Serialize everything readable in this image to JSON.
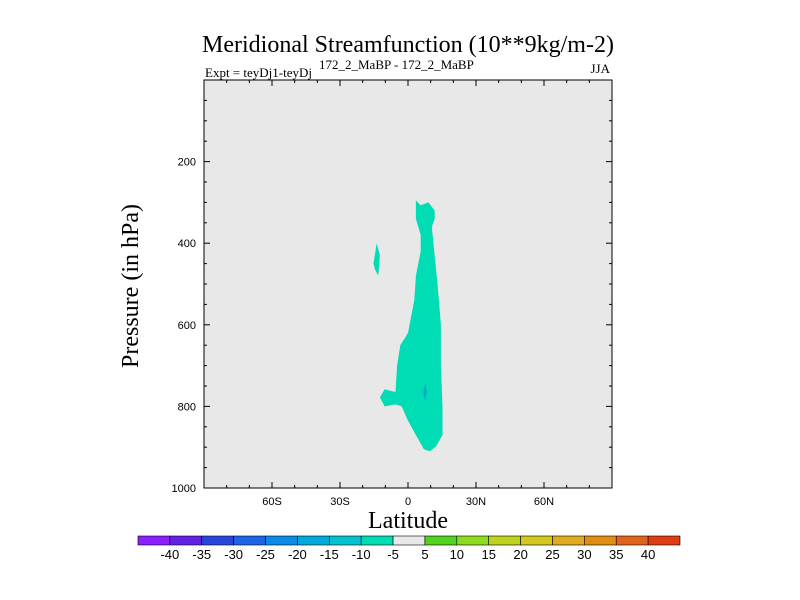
{
  "chart_data": {
    "type": "contour",
    "title": "Meridional Streamfunction (10**9kg/m-2)",
    "subtitle_left": "Expt = teyDj1-teyDj",
    "subtitle_super": "172_2_MaBP - 172_2_MaBP",
    "subtitle_right": "JJA",
    "xlabel": "Latitude",
    "ylabel": "Pressure (in hPa)",
    "xlim": [
      -90,
      90
    ],
    "ylim": [
      1000,
      0
    ],
    "x_ticks": [
      {
        "value": -60,
        "label": "60S"
      },
      {
        "value": -30,
        "label": "30S"
      },
      {
        "value": 0,
        "label": "0"
      },
      {
        "value": 30,
        "label": "30N"
      },
      {
        "value": 60,
        "label": "60N"
      }
    ],
    "y_ticks": [
      {
        "value": 200,
        "label": "200"
      },
      {
        "value": 400,
        "label": "400"
      },
      {
        "value": 600,
        "label": "600"
      },
      {
        "value": 800,
        "label": "800"
      },
      {
        "value": 1000,
        "label": "1000"
      }
    ],
    "background_level_color": "#e8e8e8",
    "regions": [
      {
        "name": "main-negative-cell",
        "level": -10,
        "color": "#00dcb4",
        "points": [
          [
            3.5,
            295
          ],
          [
            5.6,
            307
          ],
          [
            9,
            300
          ],
          [
            11.8,
            320
          ],
          [
            11.8,
            340
          ],
          [
            10.5,
            360
          ],
          [
            13,
            500
          ],
          [
            14.5,
            600
          ],
          [
            14.5,
            700
          ],
          [
            15.2,
            800
          ],
          [
            15.2,
            870
          ],
          [
            12.4,
            898
          ],
          [
            9.7,
            910
          ],
          [
            7,
            905
          ],
          [
            3.5,
            870
          ],
          [
            0,
            835
          ],
          [
            -2.8,
            800
          ],
          [
            -5.5,
            795
          ],
          [
            -10.3,
            800
          ],
          [
            -12.4,
            778
          ],
          [
            -10.3,
            758
          ],
          [
            -5.5,
            765
          ],
          [
            -4.8,
            700
          ],
          [
            -3.4,
            650
          ],
          [
            0,
            620
          ],
          [
            2.8,
            540
          ],
          [
            3.5,
            480
          ],
          [
            5.6,
            420
          ],
          [
            5.6,
            380
          ],
          [
            3.5,
            340
          ]
        ]
      },
      {
        "name": "small-negative-cell",
        "level": -10,
        "color": "#00dcb4",
        "points": [
          [
            -13.8,
            400
          ],
          [
            -12.4,
            430
          ],
          [
            -13.1,
            480
          ],
          [
            -14.5,
            465
          ],
          [
            -15.2,
            450
          ],
          [
            -14.5,
            425
          ]
        ]
      },
      {
        "name": "inner-negative-spot",
        "level": -15,
        "color": "#00aacc",
        "points": [
          [
            6.9,
            760
          ],
          [
            7.6,
            745
          ],
          [
            8.3,
            765
          ],
          [
            7.6,
            785
          ],
          [
            6.9,
            775
          ]
        ]
      }
    ],
    "colorbar": {
      "labels": [
        "-40",
        "-35",
        "-30",
        "-25",
        "-20",
        "-15",
        "-10",
        "-5",
        "5",
        "10",
        "15",
        "20",
        "25",
        "30",
        "35",
        "40"
      ],
      "colors": [
        "#8c1eff",
        "#6420e6",
        "#2846dc",
        "#1e64e6",
        "#0a8ce6",
        "#00aadc",
        "#00c3d2",
        "#00dcb4",
        "#e8e8e8",
        "#50d21e",
        "#8cdc1e",
        "#bed21e",
        "#d2c81e",
        "#e1aa1e",
        "#e18c14",
        "#e1641e",
        "#e13c14"
      ]
    }
  }
}
